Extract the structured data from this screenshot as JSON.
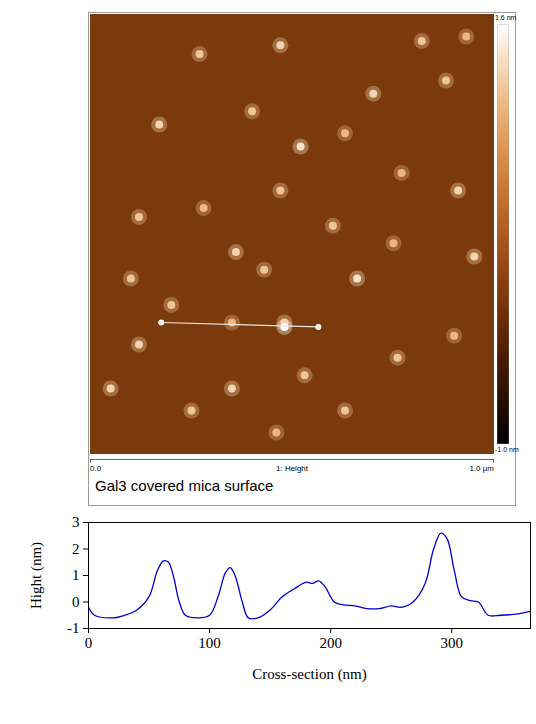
{
  "chart_data": [
    {
      "type": "image",
      "title": "Gal3 covered mica surface",
      "channel_label": "1: Height",
      "xlim": [
        0,
        1.0
      ],
      "ylim": [
        0,
        1.0
      ],
      "xticks": [
        {
          "value": 0,
          "label": "0.0"
        },
        {
          "value": 1.0,
          "label": "1.0 µm"
        }
      ],
      "colorbar": {
        "range": [
          -1.0,
          1.6
        ],
        "ticks": [
          {
            "value": 1.6,
            "label": "1.6 nm"
          },
          {
            "value": -1.0,
            "label": "-1.0 nm"
          }
        ]
      },
      "spots": {
        "x": [
          0.47,
          0.82,
          0.93,
          0.27,
          0.17,
          0.4,
          0.52,
          0.63,
          0.7,
          0.88,
          0.91,
          0.77,
          0.47,
          0.28,
          0.12,
          0.36,
          0.6,
          0.75,
          0.95,
          0.43,
          0.66,
          0.48,
          0.35,
          0.2,
          0.12,
          0.53,
          0.35,
          0.76,
          0.9,
          0.25,
          0.05,
          0.63,
          0.46,
          0.1,
          0.48
        ],
        "y": [
          0.93,
          0.94,
          0.95,
          0.91,
          0.75,
          0.78,
          0.7,
          0.73,
          0.82,
          0.85,
          0.6,
          0.64,
          0.6,
          0.56,
          0.54,
          0.46,
          0.52,
          0.48,
          0.45,
          0.42,
          0.4,
          0.3,
          0.3,
          0.34,
          0.25,
          0.18,
          0.15,
          0.22,
          0.27,
          0.1,
          0.15,
          0.1,
          0.05,
          0.4,
          0.29
        ],
        "values": [
          1.3,
          1.2,
          1.1,
          1.2,
          1.3,
          1.2,
          1.4,
          1.1,
          1.3,
          1.2,
          1.3,
          1.1,
          1.2,
          1.1,
          1.2,
          1.3,
          1.2,
          1.1,
          1.3,
          1.2,
          1.4,
          1.3,
          1.1,
          1.2,
          1.3,
          1.2,
          1.3,
          1.2,
          1.1,
          1.2,
          1.3,
          1.2,
          1.1,
          1.2,
          1.6
        ]
      },
      "profile_line": {
        "x": [
          0.175,
          0.564
        ],
        "y": [
          0.3,
          0.29
        ]
      }
    },
    {
      "type": "line",
      "xlabel": "Cross-section (nm)",
      "ylabel": "Hight (nm)",
      "color": "#0000cc",
      "xlim": [
        0,
        365
      ],
      "ylim": [
        -1,
        3
      ],
      "xticks": [
        0,
        100,
        200,
        300
      ],
      "yticks": [
        -1,
        0,
        1,
        2,
        3
      ],
      "x": [
        0,
        5,
        20,
        30,
        40,
        50,
        57,
        62,
        66,
        70,
        75,
        80,
        90,
        100,
        107,
        113,
        117,
        121,
        127,
        132,
        140,
        150,
        160,
        170,
        180,
        185,
        190,
        195,
        203,
        210,
        220,
        230,
        240,
        250,
        258,
        268,
        278,
        285,
        291,
        296,
        302,
        308,
        315,
        322,
        330,
        340,
        355,
        365
      ],
      "values": [
        -0.2,
        -0.5,
        -0.6,
        -0.5,
        -0.3,
        0.2,
        1.2,
        1.55,
        1.5,
        1.0,
        0.0,
        -0.5,
        -0.6,
        -0.5,
        0.2,
        1.1,
        1.3,
        1.0,
        0.0,
        -0.6,
        -0.6,
        -0.3,
        0.2,
        0.5,
        0.75,
        0.7,
        0.8,
        0.6,
        0.0,
        -0.1,
        -0.15,
        -0.25,
        -0.25,
        -0.15,
        -0.2,
        0.0,
        0.7,
        2.0,
        2.6,
        2.4,
        1.2,
        0.2,
        0.05,
        0.0,
        -0.5,
        -0.5,
        -0.45,
        -0.35
      ]
    }
  ]
}
